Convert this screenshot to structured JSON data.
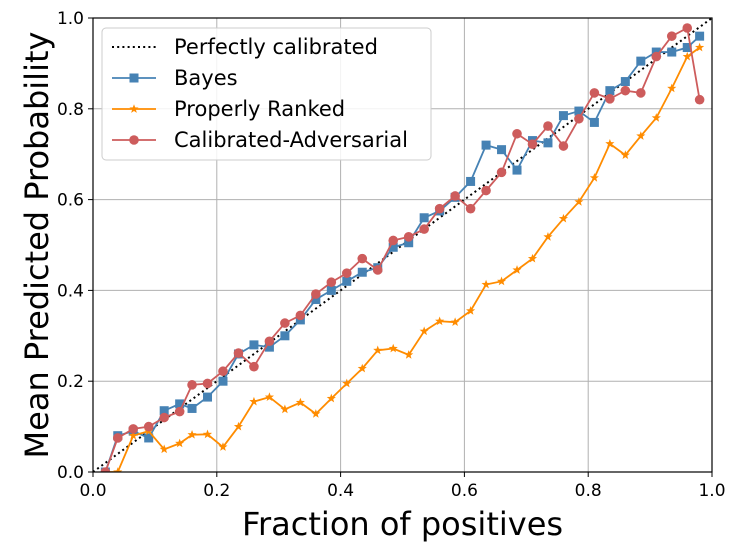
{
  "chart_data": {
    "type": "line",
    "xlabel": "Fraction of positives",
    "ylabel": "Mean Predicted Probability",
    "xlim": [
      0,
      1
    ],
    "ylim": [
      0,
      1
    ],
    "xticks": [
      "0.0",
      "0.2",
      "0.4",
      "0.6",
      "0.8",
      "1.0"
    ],
    "yticks": [
      "0.0",
      "0.2",
      "0.4",
      "0.6",
      "0.8",
      "1.0"
    ],
    "grid": true,
    "legend_position": "upper-left",
    "series": [
      {
        "name": "Perfectly calibrated",
        "color": "#000000",
        "style": "dotted",
        "marker": "none",
        "x": [
          0,
          1
        ],
        "y": [
          0,
          1
        ]
      },
      {
        "name": "Bayes",
        "color": "#4682b4",
        "style": "solid",
        "marker": "square",
        "x": [
          0.02,
          0.04,
          0.065,
          0.09,
          0.115,
          0.14,
          0.16,
          0.185,
          0.21,
          0.235,
          0.26,
          0.285,
          0.31,
          0.335,
          0.36,
          0.385,
          0.41,
          0.435,
          0.46,
          0.485,
          0.51,
          0.535,
          0.56,
          0.585,
          0.61,
          0.635,
          0.66,
          0.685,
          0.71,
          0.735,
          0.76,
          0.785,
          0.81,
          0.835,
          0.86,
          0.885,
          0.91,
          0.935,
          0.96,
          0.98
        ],
        "y": [
          0.0,
          0.08,
          0.09,
          0.075,
          0.135,
          0.15,
          0.14,
          0.165,
          0.2,
          0.26,
          0.28,
          0.275,
          0.3,
          0.335,
          0.38,
          0.4,
          0.42,
          0.44,
          0.45,
          0.495,
          0.505,
          0.56,
          0.575,
          0.605,
          0.64,
          0.72,
          0.71,
          0.665,
          0.73,
          0.725,
          0.785,
          0.795,
          0.77,
          0.84,
          0.86,
          0.905,
          0.925,
          0.925,
          0.935,
          0.96
        ]
      },
      {
        "name": "Properly Ranked",
        "color": "#ff8c00",
        "style": "solid",
        "marker": "star",
        "x": [
          0.02,
          0.04,
          0.065,
          0.09,
          0.115,
          0.14,
          0.16,
          0.185,
          0.21,
          0.235,
          0.26,
          0.285,
          0.31,
          0.335,
          0.36,
          0.385,
          0.41,
          0.435,
          0.46,
          0.485,
          0.51,
          0.535,
          0.56,
          0.585,
          0.61,
          0.635,
          0.66,
          0.685,
          0.71,
          0.735,
          0.76,
          0.785,
          0.81,
          0.835,
          0.86,
          0.885,
          0.91,
          0.935,
          0.96,
          0.98
        ],
        "y": [
          0.0,
          0.0,
          0.08,
          0.09,
          0.05,
          0.063,
          0.082,
          0.083,
          0.055,
          0.1,
          0.155,
          0.165,
          0.138,
          0.153,
          0.128,
          0.162,
          0.195,
          0.228,
          0.268,
          0.272,
          0.258,
          0.31,
          0.332,
          0.33,
          0.355,
          0.413,
          0.42,
          0.445,
          0.47,
          0.518,
          0.558,
          0.595,
          0.648,
          0.723,
          0.698,
          0.74,
          0.78,
          0.845,
          0.915,
          0.935
        ]
      },
      {
        "name": "Calibrated-Adversarial",
        "color": "#cd5c5c",
        "style": "solid",
        "marker": "circle",
        "x": [
          0.02,
          0.04,
          0.065,
          0.09,
          0.115,
          0.14,
          0.16,
          0.185,
          0.21,
          0.235,
          0.26,
          0.285,
          0.31,
          0.335,
          0.36,
          0.385,
          0.41,
          0.435,
          0.46,
          0.485,
          0.51,
          0.535,
          0.56,
          0.585,
          0.61,
          0.635,
          0.66,
          0.685,
          0.71,
          0.735,
          0.76,
          0.785,
          0.81,
          0.835,
          0.86,
          0.885,
          0.91,
          0.935,
          0.96,
          0.98
        ],
        "y": [
          0.0,
          0.075,
          0.095,
          0.1,
          0.12,
          0.133,
          0.192,
          0.195,
          0.222,
          0.262,
          0.232,
          0.288,
          0.328,
          0.345,
          0.392,
          0.418,
          0.438,
          0.47,
          0.445,
          0.51,
          0.518,
          0.535,
          0.58,
          0.608,
          0.58,
          0.62,
          0.66,
          0.745,
          0.722,
          0.762,
          0.718,
          0.778,
          0.835,
          0.822,
          0.84,
          0.835,
          0.915,
          0.96,
          0.978,
          0.82
        ]
      }
    ]
  }
}
